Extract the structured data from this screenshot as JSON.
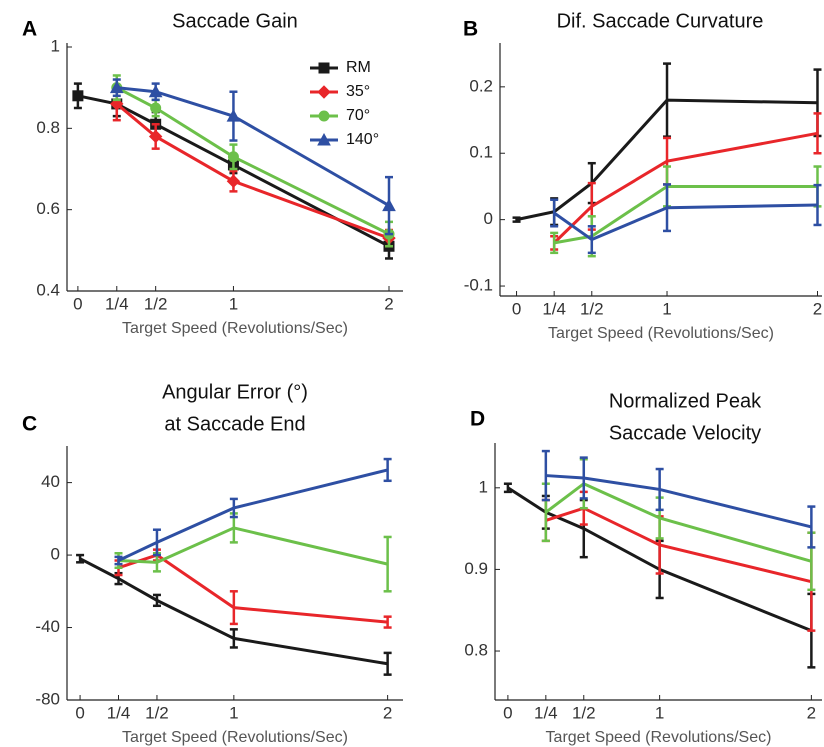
{
  "chart_data": [
    {
      "type": "line",
      "panel": "A",
      "title": [
        "Saccade Gain"
      ],
      "xlabel": "Target Speed (Revolutions/Sec)",
      "xlim": [
        -0.07,
        2.09
      ],
      "ylim": [
        0.4,
        1
      ],
      "xticks": [
        0,
        {
          "value": 0.25,
          "label": "1/4"
        },
        {
          "value": 0.5,
          "label": "1/2"
        },
        1,
        2
      ],
      "yticks": [
        0.4,
        0.6,
        0.8,
        1
      ],
      "legend": "upper right",
      "series": [
        {
          "name": "RM",
          "color": "#1a1a1a",
          "marker": "square",
          "x": [
            0,
            0.25,
            0.5,
            1,
            2
          ],
          "values": [
            0.88,
            0.86,
            0.81,
            0.71,
            0.51
          ],
          "errors": [
            0.03,
            0.03,
            0.03,
            0.02,
            0.03
          ]
        },
        {
          "name": "35°",
          "color": "#e8262a",
          "marker": "diamond",
          "x": [
            0.25,
            0.5,
            1,
            2
          ],
          "values": [
            0.86,
            0.78,
            0.67,
            0.53
          ],
          "errors": [
            0.04,
            0.03,
            0.025,
            0.02
          ]
        },
        {
          "name": "70°",
          "color": "#6cc04a",
          "marker": "circle",
          "x": [
            0.25,
            0.5,
            1,
            2
          ],
          "values": [
            0.9,
            0.85,
            0.73,
            0.54
          ],
          "errors": [
            0.03,
            0.02,
            0.03,
            0.03
          ]
        },
        {
          "name": "140°",
          "color": "#2e4fa3",
          "marker": "triangle",
          "x": [
            0.25,
            0.5,
            1,
            2
          ],
          "values": [
            0.9,
            0.89,
            0.83,
            0.61
          ],
          "errors": [
            0.02,
            0.02,
            0.06,
            0.07
          ]
        }
      ]
    },
    {
      "type": "line",
      "panel": "B",
      "title": [
        "Dif. Saccade Curvature"
      ],
      "xlabel": "Target Speed (Revolutions/Sec)",
      "xlim": [
        -0.11,
        2.03
      ],
      "ylim": [
        -0.115,
        0.26
      ],
      "xticks": [
        0,
        {
          "value": 0.25,
          "label": "1/4"
        },
        {
          "value": 0.5,
          "label": "1/2"
        },
        1,
        2
      ],
      "yticks": [
        -0.1,
        0,
        0.1,
        0.2
      ],
      "series": [
        {
          "color": "#1a1a1a",
          "x": [
            0,
            0.25,
            0.5,
            1,
            2
          ],
          "values": [
            0,
            0.012,
            0.055,
            0.18,
            0.176
          ],
          "errors": [
            0.003,
            0.02,
            0.03,
            0.055,
            0.05
          ]
        },
        {
          "color": "#e8262a",
          "x": [
            0.25,
            0.5,
            1,
            2
          ],
          "values": [
            -0.035,
            0.02,
            0.088,
            0.13
          ],
          "errors": [
            0.01,
            0.035,
            0.035,
            0.03
          ]
        },
        {
          "color": "#6cc04a",
          "x": [
            0.25,
            0.5,
            1,
            2
          ],
          "values": [
            -0.035,
            -0.025,
            0.05,
            0.05
          ],
          "errors": [
            0.015,
            0.03,
            0.03,
            0.03
          ]
        },
        {
          "color": "#2e4fa3",
          "x": [
            0.25,
            0.5,
            1,
            2
          ],
          "values": [
            0.01,
            -0.03,
            0.018,
            0.022
          ],
          "errors": [
            0.02,
            0.02,
            0.035,
            0.03
          ]
        }
      ]
    },
    {
      "type": "line",
      "panel": "C",
      "title": [
        "Angular Error (°)",
        "at Saccade End"
      ],
      "xlabel": "Target Speed (Revolutions/Sec)",
      "xlim": [
        -0.085,
        2.1
      ],
      "ylim": [
        -80,
        58
      ],
      "xticks": [
        0,
        {
          "value": 0.25,
          "label": "1/4"
        },
        {
          "value": 0.5,
          "label": "1/2"
        },
        1,
        2
      ],
      "yticks": [
        -80,
        -40,
        0,
        40
      ],
      "series": [
        {
          "color": "#1a1a1a",
          "x": [
            0,
            0.25,
            0.5,
            1,
            2
          ],
          "values": [
            -2,
            -13,
            -25,
            -46,
            -60
          ],
          "errors": [
            2,
            3,
            3,
            5,
            6
          ]
        },
        {
          "color": "#e8262a",
          "x": [
            0.25,
            0.5,
            1,
            2
          ],
          "values": [
            -7,
            0,
            -29,
            -37
          ],
          "errors": [
            4,
            3,
            9,
            3
          ]
        },
        {
          "color": "#6cc04a",
          "x": [
            0.25,
            0.5,
            1,
            2
          ],
          "values": [
            -3,
            -4,
            15,
            -5
          ],
          "errors": [
            4,
            5,
            8,
            15
          ]
        },
        {
          "color": "#2e4fa3",
          "x": [
            0.25,
            0.5,
            1,
            2
          ],
          "values": [
            -3,
            7,
            26,
            47
          ],
          "errors": [
            2,
            7,
            5,
            6
          ]
        }
      ]
    },
    {
      "type": "line",
      "panel": "D",
      "title": [
        "Normalized Peak",
        "Saccade Velocity"
      ],
      "xlabel": "Target Speed (Revolutions/Sec)",
      "xlim": [
        -0.085,
        2.07
      ],
      "ylim": [
        0.74,
        1.05
      ],
      "xticks": [
        0,
        {
          "value": 0.25,
          "label": "1/4"
        },
        {
          "value": 0.5,
          "label": "1/2"
        },
        1,
        2
      ],
      "yticks": [
        0.8,
        0.9,
        1
      ],
      "series": [
        {
          "color": "#1a1a1a",
          "x": [
            0,
            0.25,
            0.5,
            1,
            2
          ],
          "values": [
            1.0,
            0.97,
            0.95,
            0.9,
            0.825
          ],
          "errors": [
            0.005,
            0.02,
            0.035,
            0.035,
            0.045
          ]
        },
        {
          "color": "#e8262a",
          "x": [
            0.25,
            0.5,
            1,
            2
          ],
          "values": [
            0.96,
            0.975,
            0.93,
            0.885
          ],
          "errors": [
            0.025,
            0.02,
            0.035,
            0.06
          ]
        },
        {
          "color": "#6cc04a",
          "x": [
            0.25,
            0.5,
            1,
            2
          ],
          "values": [
            0.97,
            1.005,
            0.963,
            0.91
          ],
          "errors": [
            0.035,
            0.03,
            0.025,
            0.035
          ]
        },
        {
          "color": "#2e4fa3",
          "x": [
            0.25,
            0.5,
            1,
            2
          ],
          "values": [
            1.015,
            1.012,
            0.998,
            0.952
          ],
          "errors": [
            0.03,
            0.025,
            0.025,
            0.025
          ]
        }
      ]
    }
  ]
}
